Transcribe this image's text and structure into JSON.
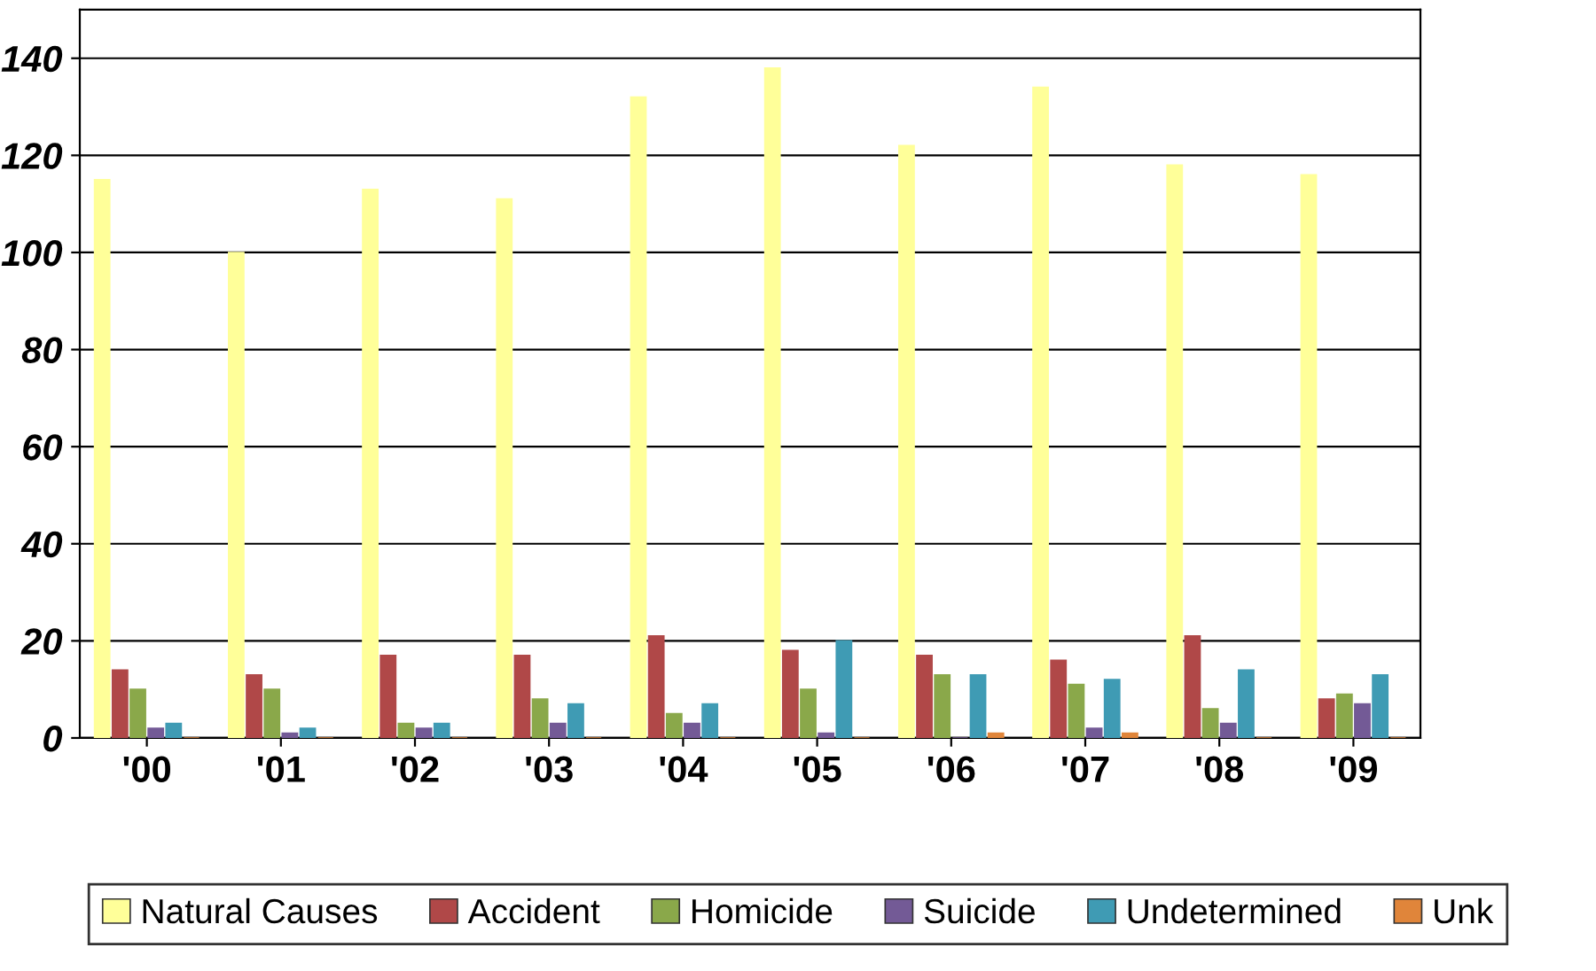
{
  "chart_data": {
    "type": "bar",
    "categories": [
      "'00",
      "'01",
      "'02",
      "'03",
      "'04",
      "'05",
      "'06",
      "'07",
      "'08",
      "'09"
    ],
    "series": [
      {
        "name": "Natural Causes",
        "color": "#ffff99",
        "values": [
          115,
          100,
          113,
          111,
          132,
          138,
          122,
          134,
          118,
          116
        ]
      },
      {
        "name": "Accident",
        "color": "#b04848",
        "values": [
          14,
          13,
          17,
          17,
          21,
          18,
          17,
          16,
          21,
          8
        ]
      },
      {
        "name": "Homicide",
        "color": "#8aa84a",
        "values": [
          10,
          10,
          3,
          8,
          5,
          10,
          13,
          11,
          6,
          9
        ]
      },
      {
        "name": "Suicide",
        "color": "#735a96",
        "values": [
          2,
          1,
          2,
          3,
          3,
          1,
          0,
          2,
          3,
          7
        ]
      },
      {
        "name": "Undetermined",
        "color": "#3f9bb4",
        "values": [
          3,
          2,
          3,
          7,
          7,
          20,
          13,
          12,
          14,
          13
        ]
      },
      {
        "name": "Unk",
        "color": "#e0853a",
        "values": [
          0,
          0,
          0,
          0,
          0,
          0,
          1,
          1,
          0,
          0
        ]
      }
    ],
    "ylim": [
      0,
      150
    ],
    "yticks": [
      0,
      20,
      40,
      60,
      80,
      100,
      120,
      140
    ],
    "grid": "y",
    "legend": "bottom"
  }
}
